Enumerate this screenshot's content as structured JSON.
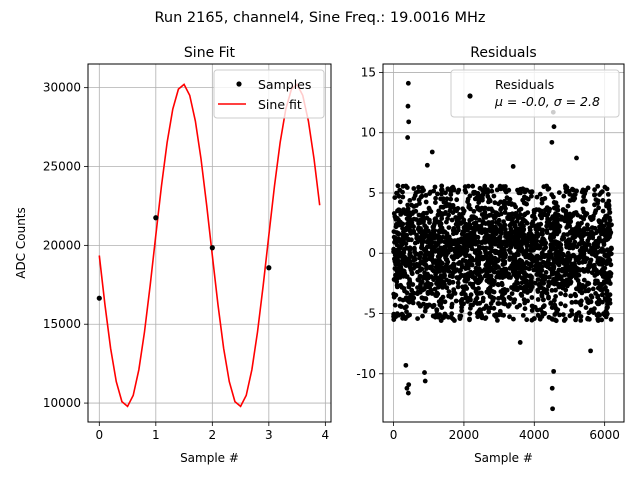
{
  "figure": {
    "suptitle": "Run 2165, channel4, Sine Freq.: 19.0016 MHz"
  },
  "chart_data": [
    {
      "type": "line",
      "title": "Sine Fit",
      "xlabel": "Sample #",
      "ylabel": "ADC Counts",
      "xlim": [
        -0.2,
        4.1
      ],
      "ylim": [
        8800,
        31500
      ],
      "grid": true,
      "xticks": [
        0,
        1,
        2,
        3,
        4
      ],
      "yticks": [
        10000,
        15000,
        20000,
        25000,
        30000
      ],
      "legend_position": "upper right",
      "series": [
        {
          "name": "Samples",
          "style": "markers",
          "color": "#000000",
          "x": [
            0,
            1,
            2,
            3
          ],
          "y": [
            16650,
            21750,
            19850,
            18580
          ]
        },
        {
          "name": "Sine fit",
          "style": "line",
          "color": "#ff0000",
          "model": {
            "offset": 20000,
            "amplitude": 10230,
            "period": 2.0,
            "center": 1.48
          },
          "x_range": [
            0,
            3.9
          ],
          "x_step": 0.1
        }
      ]
    },
    {
      "type": "scatter",
      "title": "Residuals",
      "xlabel": "Sample #",
      "ylabel": "",
      "xlim": [
        -300,
        6550
      ],
      "ylim": [
        -14,
        15.7
      ],
      "grid": true,
      "xticks": [
        0,
        2000,
        4000,
        6000
      ],
      "yticks": [
        -10,
        -5,
        0,
        5,
        10,
        15
      ],
      "legend_position": "upper right",
      "series": [
        {
          "name": "Residuals",
          "stats_label": "μ = -0.0, σ = 2.8",
          "color": "#000000",
          "x_range": [
            0,
            6200
          ],
          "mean": 0.0,
          "std": 2.8,
          "n_points": 2500,
          "outliers": [
            {
              "x": 420,
              "y": 14.1
            },
            {
              "x": 410,
              "y": 12.2
            },
            {
              "x": 430,
              "y": 10.9
            },
            {
              "x": 400,
              "y": 9.6
            },
            {
              "x": 4540,
              "y": 11.7
            },
            {
              "x": 4560,
              "y": 10.5
            },
            {
              "x": 4500,
              "y": 9.2
            },
            {
              "x": 420,
              "y": -11.6
            },
            {
              "x": 380,
              "y": -11.2
            },
            {
              "x": 430,
              "y": -10.9
            },
            {
              "x": 900,
              "y": -10.6
            },
            {
              "x": 880,
              "y": -9.9
            },
            {
              "x": 350,
              "y": -9.3
            },
            {
              "x": 4520,
              "y": -12.9
            },
            {
              "x": 4510,
              "y": -11.2
            },
            {
              "x": 4550,
              "y": -9.8
            },
            {
              "x": 1100,
              "y": 8.4
            },
            {
              "x": 960,
              "y": 7.3
            },
            {
              "x": 5200,
              "y": 7.9
            },
            {
              "x": 3400,
              "y": 7.2
            },
            {
              "x": 5600,
              "y": -8.1
            },
            {
              "x": 3600,
              "y": -7.4
            }
          ]
        }
      ]
    }
  ]
}
